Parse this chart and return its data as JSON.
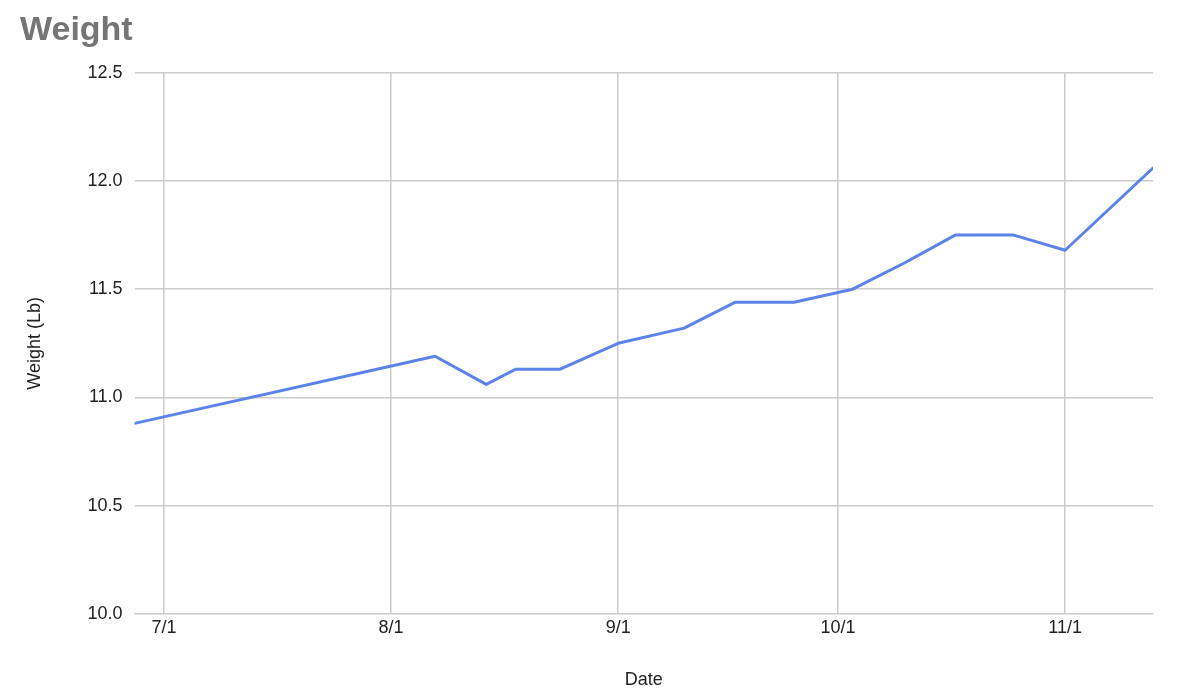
{
  "chart_data": {
    "type": "line",
    "title": "Weight",
    "xlabel": "Date",
    "ylabel": "Weight (Lb)",
    "x": [
      "--06-27",
      "--08-07",
      "--08-14",
      "--08-18",
      "--08-24",
      "--09-01",
      "--09-10",
      "--09-17",
      "--09-25",
      "--10-03",
      "--10-10",
      "--10-17",
      "--10-25",
      "--11-01",
      "--11-13"
    ],
    "series": [
      {
        "color": "#5b83e8",
        "values": [
          10.88,
          11.19,
          11.06,
          11.13,
          11.13,
          11.25,
          11.32,
          11.44,
          11.44,
          11.5,
          11.62,
          11.75,
          11.75,
          11.68,
          12.06
        ]
      }
    ],
    "xlim": [
      "--06-27",
      "--11-13"
    ],
    "xticks": [
      {
        "value": "--07-01",
        "label": "7/1"
      },
      {
        "value": "--08-01",
        "label": "8/1"
      },
      {
        "value": "--09-01",
        "label": "9/1"
      },
      {
        "value": "--10-01",
        "label": "10/1"
      },
      {
        "value": "--11-01",
        "label": "11/1"
      }
    ],
    "ylim": [
      10.0,
      12.5
    ],
    "yticks": [
      {
        "value": 10.0,
        "label": "10.0"
      },
      {
        "value": 10.5,
        "label": "10.5"
      },
      {
        "value": 11.0,
        "label": "11.0"
      },
      {
        "value": 11.5,
        "label": "11.5"
      },
      {
        "value": 12.0,
        "label": "12.0"
      },
      {
        "value": 12.5,
        "label": "12.5"
      }
    ],
    "grid": true,
    "marker": "none",
    "line_style": "solid",
    "legend": false
  }
}
